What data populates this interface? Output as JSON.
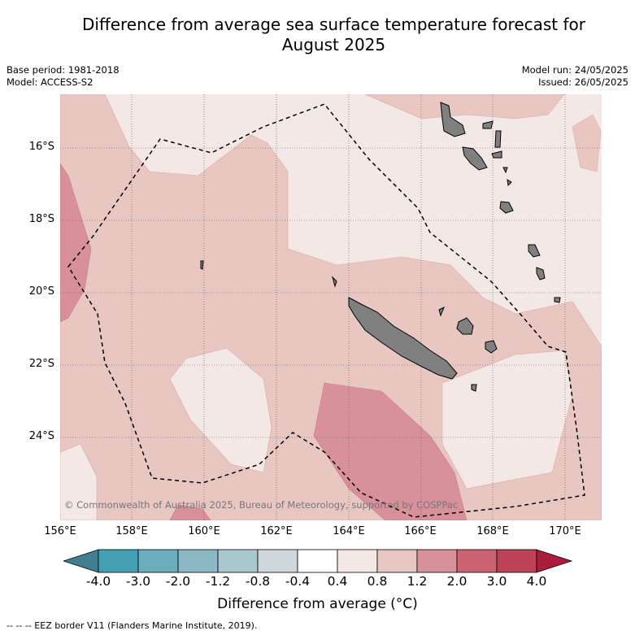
{
  "title_line1": "Difference from average sea surface temperature forecast for",
  "title_line2": "August 2025",
  "base_period": "Base period: 1981-2018",
  "model": "Model: ACCESS-S2",
  "model_run": "Model run: 24/05/2025",
  "issued": "Issued: 26/05/2025",
  "lat_labels": [
    "16°S",
    "18°S",
    "20°S",
    "22°S",
    "24°S"
  ],
  "lon_labels": [
    "156°E",
    "158°E",
    "160°E",
    "162°E",
    "164°E",
    "166°E",
    "168°E",
    "170°E"
  ],
  "copyright": "© Commonwealth of Australia 2025, Bureau of Meteorology, supported by COSPPac",
  "colorbar": {
    "ticks": [
      "-4.0",
      "-3.0",
      "-2.0",
      "-1.2",
      "-0.8",
      "-0.4",
      "0.4",
      "0.8",
      "1.2",
      "2.0",
      "3.0",
      "4.0"
    ],
    "colors": [
      "#3f7f8f",
      "#43a0b2",
      "#6aadbd",
      "#8cb8c5",
      "#a9c8cd",
      "#cfd8da",
      "#ffffff",
      "#f4e8e6",
      "#e8c6c1",
      "#d8919a",
      "#cb6470",
      "#bd4356",
      "#ac1c3c"
    ],
    "label": "Difference from average (°C)"
  },
  "legend": "--  --  -- EEZ border V11 (Flanders Marine Institute, 2019)."
}
